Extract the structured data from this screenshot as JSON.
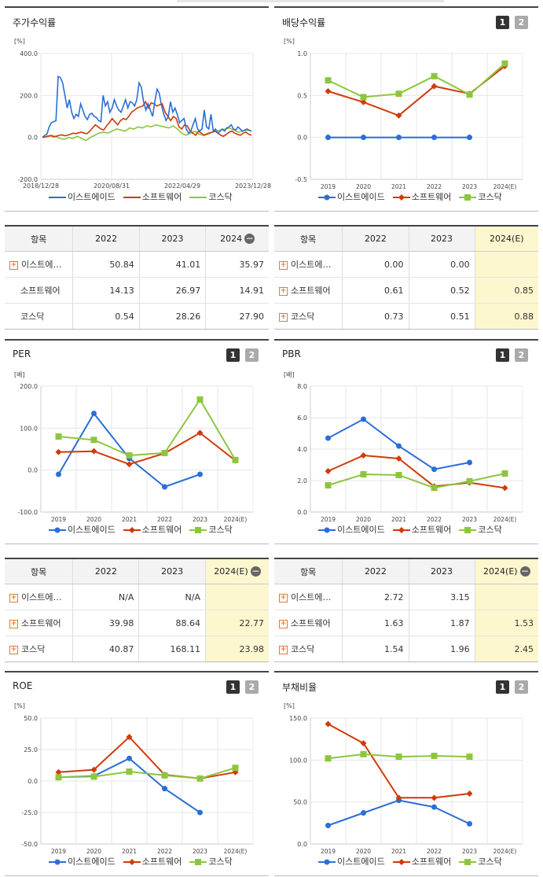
{
  "colors": {
    "s1": "#2a6fd6",
    "s2": "#d03a0a",
    "s3": "#8cc63e"
  },
  "legend_names": [
    "이스트에이드",
    "소프트웨어",
    "코스닥"
  ],
  "chart_data": [
    {
      "id": "c1",
      "type": "line",
      "title": "주가수익률",
      "unit": "[%]",
      "ylim": [
        -200,
        400
      ],
      "yticks": [
        "400.0",
        "200.0",
        "0.0",
        "-200.0"
      ],
      "xlabels": [
        "2018/12/28",
        "2020/08/31",
        "2022/04/29",
        "2023/12/28"
      ],
      "xtype": "timeseries",
      "series": [
        {
          "name": "이스트에이드",
          "values": [
            0,
            10,
            15,
            50,
            70,
            75,
            80,
            290,
            285,
            260,
            200,
            140,
            180,
            120,
            90,
            110,
            100,
            160,
            130,
            100,
            85,
            110,
            115,
            100,
            95,
            80,
            75,
            200,
            150,
            170,
            120,
            140,
            180,
            150,
            130,
            120,
            150,
            180,
            140,
            170,
            165,
            150,
            180,
            260,
            240,
            170,
            130,
            160,
            130,
            100,
            170,
            230,
            210,
            150,
            110,
            80,
            100,
            170,
            120,
            140,
            110,
            70,
            80,
            90,
            40,
            20,
            30,
            60,
            90,
            40,
            30,
            40,
            130,
            50,
            40,
            110,
            30,
            40,
            20,
            30,
            40,
            30,
            45,
            50,
            60,
            40,
            35,
            50,
            40,
            30,
            35,
            40,
            35,
            30
          ],
          "display": [
            0,
            12,
            18,
            60,
            78,
            82,
            90,
            290,
            280,
            255,
            200,
            145,
            178,
            125,
            95,
            112,
            105,
            160,
            132,
            105,
            88,
            112,
            118,
            102,
            98,
            82,
            78,
            200,
            152,
            168,
            122,
            142,
            178,
            150,
            132,
            122,
            152,
            178,
            142,
            168,
            165,
            152,
            178,
            258,
            238,
            172,
            132,
            158,
            132,
            102,
            168,
            228,
            208,
            152,
            112,
            82,
            102,
            168,
            122,
            138,
            112,
            72,
            82,
            92,
            42,
            22,
            32,
            62,
            92,
            42,
            32,
            42,
            128,
            52,
            42,
            108,
            32,
            42,
            22,
            32,
            42,
            32,
            45,
            50,
            60,
            42,
            36,
            50,
            40,
            32,
            36,
            40,
            36,
            32
          ]
        },
        {
          "name": "소프트웨어",
          "values": [
            0,
            2,
            5,
            8,
            3,
            5,
            10,
            12,
            8,
            10,
            15,
            20,
            18,
            22,
            25,
            20,
            18,
            30,
            45,
            60,
            50,
            40,
            35,
            55,
            70,
            90,
            75,
            60,
            80,
            90,
            85,
            100,
            120,
            130,
            140,
            145,
            150,
            170,
            140,
            165,
            160,
            150,
            155,
            160,
            120,
            100,
            80,
            100,
            90,
            50,
            40,
            60,
            55,
            30,
            20,
            10,
            30,
            20,
            10,
            15,
            20,
            25,
            30,
            20,
            10,
            5,
            15,
            25,
            30,
            20,
            15,
            10,
            20,
            25,
            15,
            10
          ],
          "display": [
            0,
            2,
            5,
            8,
            3,
            5,
            10,
            12,
            8,
            10,
            15,
            20,
            18,
            22,
            25,
            20,
            18,
            30,
            45,
            60,
            50,
            40,
            35,
            55,
            70,
            90,
            75,
            60,
            80,
            90,
            85,
            100,
            120,
            130,
            140,
            145,
            150,
            170,
            140,
            165,
            160,
            150,
            155,
            160,
            120,
            100,
            80,
            100,
            90,
            50,
            40,
            60,
            55,
            30,
            20,
            10,
            30,
            20,
            10,
            15,
            20,
            25,
            30,
            20,
            10,
            5,
            15,
            25,
            30,
            20,
            15,
            10,
            20,
            25,
            15,
            10
          ]
        },
        {
          "name": "코스닥",
          "values": [
            0,
            5,
            10,
            5,
            -5,
            -10,
            0,
            -5,
            5,
            -5,
            -15,
            0,
            10,
            20,
            25,
            20,
            30,
            40,
            35,
            30,
            45,
            40,
            50,
            45,
            55,
            50,
            60,
            55,
            50,
            45,
            55,
            40,
            20,
            10,
            20,
            30,
            15,
            10,
            20,
            25,
            30,
            35,
            40,
            45,
            35,
            25,
            30,
            35,
            30
          ],
          "display": [
            0,
            5,
            10,
            5,
            -5,
            -10,
            0,
            -5,
            5,
            -5,
            -15,
            0,
            10,
            20,
            25,
            20,
            30,
            40,
            35,
            30,
            45,
            40,
            50,
            45,
            55,
            50,
            60,
            55,
            50,
            45,
            55,
            40,
            20,
            10,
            20,
            30,
            15,
            10,
            20,
            25,
            30,
            35,
            40,
            45,
            35,
            25,
            30,
            35,
            30
          ]
        }
      ]
    },
    {
      "id": "c2",
      "type": "line",
      "title": "배당수익률",
      "unit": "[%]",
      "ylim": [
        -0.5,
        1.0
      ],
      "yticks": [
        "1.0",
        "0.5",
        "0.0",
        "-0.5"
      ],
      "categories": [
        "2019",
        "2020",
        "2021",
        "2022",
        "2023",
        "2024(E)"
      ],
      "series": [
        {
          "name": "이스트에이드",
          "values": [
            0,
            0,
            0,
            0,
            0,
            null
          ]
        },
        {
          "name": "소프트웨어",
          "values": [
            0.55,
            0.42,
            0.26,
            0.61,
            0.52,
            0.85
          ]
        },
        {
          "name": "코스닥",
          "values": [
            0.68,
            0.48,
            0.52,
            0.73,
            0.51,
            0.88
          ]
        }
      ]
    },
    {
      "id": "c3",
      "type": "line",
      "title": "PER",
      "unit": "[배]",
      "ylim": [
        -100,
        200
      ],
      "yticks": [
        "200.0",
        "100.0",
        "0.0",
        "-100.0"
      ],
      "categories": [
        "2019",
        "2020",
        "2021",
        "2022",
        "2023",
        "2024(E)"
      ],
      "series": [
        {
          "name": "이스트에이드",
          "values": [
            -10,
            135,
            28,
            -40,
            -10,
            null
          ]
        },
        {
          "name": "소프트웨어",
          "values": [
            43,
            45,
            14,
            39.98,
            88.64,
            22.77
          ]
        },
        {
          "name": "코스닥",
          "values": [
            80,
            72,
            35,
            40.87,
            168.11,
            23.98
          ]
        }
      ]
    },
    {
      "id": "c4",
      "type": "line",
      "title": "PBR",
      "unit": "[배]",
      "ylim": [
        0,
        8
      ],
      "yticks": [
        "8.0",
        "6.0",
        "4.0",
        "2.0",
        "0.0"
      ],
      "categories": [
        "2019",
        "2020",
        "2021",
        "2022",
        "2023",
        "2024(E)"
      ],
      "series": [
        {
          "name": "이스트에이드",
          "values": [
            4.7,
            5.9,
            4.2,
            2.72,
            3.15,
            null
          ]
        },
        {
          "name": "소프트웨어",
          "values": [
            2.6,
            3.6,
            3.4,
            1.63,
            1.87,
            1.53
          ]
        },
        {
          "name": "코스닥",
          "values": [
            1.7,
            2.4,
            2.35,
            1.54,
            1.96,
            2.45
          ]
        }
      ]
    },
    {
      "id": "c5",
      "type": "line",
      "title": "ROE",
      "unit": "[%]",
      "ylim": [
        -50,
        50
      ],
      "yticks": [
        "50.0",
        "25.0",
        "0.0",
        "-25.0",
        "-50.0"
      ],
      "categories": [
        "2019",
        "2020",
        "2021",
        "2022",
        "2023",
        "2024(E)"
      ],
      "series": [
        {
          "name": "이스트에이드",
          "values": [
            3,
            4,
            18,
            -6,
            -25,
            null
          ]
        },
        {
          "name": "소프트웨어",
          "values": [
            7,
            9,
            35,
            5,
            2,
            7
          ]
        },
        {
          "name": "코스닥",
          "values": [
            3,
            3.5,
            7.5,
            4.5,
            2,
            10.5
          ]
        }
      ]
    },
    {
      "id": "c6",
      "type": "line",
      "title": "부채비율",
      "unit": "[%]",
      "ylim": [
        0,
        150
      ],
      "yticks": [
        "150.0",
        "100.0",
        "50.0",
        "0.0"
      ],
      "categories": [
        "2019",
        "2020",
        "2021",
        "2022",
        "2023",
        "2024(E)"
      ],
      "series": [
        {
          "name": "이스트에이드",
          "values": [
            22,
            37,
            52,
            44,
            24,
            null
          ]
        },
        {
          "name": "소프트웨어",
          "values": [
            143,
            120,
            55,
            55,
            60,
            null
          ]
        },
        {
          "name": "코스닥",
          "values": [
            102,
            107,
            104,
            105,
            104,
            null
          ]
        }
      ]
    }
  ],
  "tables": [
    {
      "id": "t1",
      "head": [
        "항목",
        "2022",
        "2023",
        "2024"
      ],
      "hl": false,
      "minus": true,
      "rows": [
        {
          "name": "이스트에…",
          "plus": true,
          "v": [
            "50.84",
            "41.01",
            "35.97"
          ]
        },
        {
          "name": "소프트웨어",
          "plus": false,
          "v": [
            "14.13",
            "26.97",
            "14.91"
          ]
        },
        {
          "name": "코스닥",
          "plus": false,
          "v": [
            "0.54",
            "28.26",
            "27.90"
          ]
        }
      ]
    },
    {
      "id": "t2",
      "head": [
        "항목",
        "2022",
        "2023",
        "2024(E)"
      ],
      "hl": true,
      "minus": false,
      "rows": [
        {
          "name": "이스트에…",
          "plus": true,
          "v": [
            "0.00",
            "0.00",
            ""
          ]
        },
        {
          "name": "소프트웨어",
          "plus": true,
          "v": [
            "0.61",
            "0.52",
            "0.85"
          ]
        },
        {
          "name": "코스닥",
          "plus": true,
          "v": [
            "0.73",
            "0.51",
            "0.88"
          ]
        }
      ]
    },
    {
      "id": "t3",
      "head": [
        "항목",
        "2022",
        "2023",
        "2024(E)"
      ],
      "hl": true,
      "minus": true,
      "rows": [
        {
          "name": "이스트에…",
          "plus": true,
          "v": [
            "N/A",
            "N/A",
            ""
          ]
        },
        {
          "name": "소프트웨어",
          "plus": true,
          "v": [
            "39.98",
            "88.64",
            "22.77"
          ]
        },
        {
          "name": "코스닥",
          "plus": true,
          "v": [
            "40.87",
            "168.11",
            "23.98"
          ]
        }
      ]
    },
    {
      "id": "t4",
      "head": [
        "항목",
        "2022",
        "2023",
        "2024(E)"
      ],
      "hl": true,
      "minus": true,
      "rows": [
        {
          "name": "이스트에…",
          "plus": true,
          "v": [
            "2.72",
            "3.15",
            ""
          ]
        },
        {
          "name": "소프트웨어",
          "plus": true,
          "v": [
            "1.63",
            "1.87",
            "1.53"
          ]
        },
        {
          "name": "코스닥",
          "plus": true,
          "v": [
            "1.54",
            "1.96",
            "2.45"
          ]
        }
      ]
    }
  ],
  "buttons": {
    "b1": "1",
    "b2": "2"
  }
}
